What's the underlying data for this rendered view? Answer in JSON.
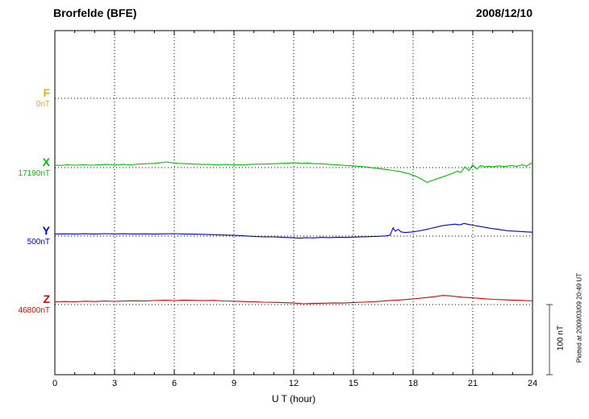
{
  "header": {
    "station": "Brorfelde (BFE)",
    "date": "2008/12/10"
  },
  "axis": {
    "xlabel": "U T (hour)"
  },
  "scale_bar": {
    "label": "100 nT",
    "span_nT": 100
  },
  "footer_note": "Plotted at 2009/03/09 20:49 UT",
  "colors": {
    "grid": "#000000",
    "border": "#000000",
    "scale_bar": "#666666",
    "background": "#ffffff"
  },
  "chart_data": {
    "type": "line",
    "title": "Brorfelde (BFE) magnetogram 2008/12/10",
    "xlabel": "U T (hour)",
    "x_range_hours": [
      0,
      24
    ],
    "x_tick_step_hours": 3,
    "x_tick_labels": [
      "0",
      "3",
      "6",
      "9",
      "12",
      "15",
      "18",
      "21",
      "24"
    ],
    "grid": "dotted vertical lines every 3 h; dotted horizontal line at each component baseline",
    "legend_position": "left margin, one label per trace at its baseline",
    "points_are_offsets_nT_from_baseline": true,
    "scale_reference_nT": 100,
    "series": [
      {
        "id": "F",
        "label": "F",
        "baseline_label": "0nT",
        "baseline_nT": 0,
        "color": "#FFA500",
        "points": []
      },
      {
        "id": "X",
        "label": "X",
        "baseline_label": "17190nT",
        "baseline_nT": 17190,
        "color": "#00C000",
        "points": [
          [
            0,
            3.5
          ],
          [
            0.3,
            3
          ],
          [
            0.6,
            4
          ],
          [
            1,
            3.5
          ],
          [
            1.4,
            4
          ],
          [
            1.8,
            3.5
          ],
          [
            2.2,
            4
          ],
          [
            2.6,
            4.5
          ],
          [
            3,
            4
          ],
          [
            3.4,
            4.5
          ],
          [
            3.8,
            4
          ],
          [
            4.2,
            5
          ],
          [
            4.6,
            5.5
          ],
          [
            5,
            6
          ],
          [
            5.3,
            7
          ],
          [
            5.6,
            8
          ],
          [
            5.9,
            7
          ],
          [
            6.2,
            6
          ],
          [
            6.6,
            5.5
          ],
          [
            7,
            5
          ],
          [
            7.4,
            4.5
          ],
          [
            7.8,
            4.5
          ],
          [
            8.2,
            4
          ],
          [
            8.6,
            4.5
          ],
          [
            9,
            4
          ],
          [
            9.4,
            4
          ],
          [
            9.8,
            4.5
          ],
          [
            10.2,
            5
          ],
          [
            10.6,
            5
          ],
          [
            11,
            5.5
          ],
          [
            11.4,
            6
          ],
          [
            11.8,
            6.5
          ],
          [
            12.1,
            7
          ],
          [
            12.4,
            6
          ],
          [
            12.7,
            6.5
          ],
          [
            13,
            5.5
          ],
          [
            13.4,
            5.5
          ],
          [
            13.8,
            4.5
          ],
          [
            14.2,
            4
          ],
          [
            14.6,
            3
          ],
          [
            15,
            2.5
          ],
          [
            15.4,
            1.5
          ],
          [
            15.8,
            0.5
          ],
          [
            16.2,
            -1
          ],
          [
            16.6,
            -2.5
          ],
          [
            17,
            -4
          ],
          [
            17.4,
            -6
          ],
          [
            17.8,
            -9
          ],
          [
            18.1,
            -12
          ],
          [
            18.4,
            -16
          ],
          [
            18.7,
            -21
          ],
          [
            18.9,
            -19
          ],
          [
            19.1,
            -17
          ],
          [
            19.4,
            -14
          ],
          [
            19.7,
            -11
          ],
          [
            20,
            -8
          ],
          [
            20.2,
            -5
          ],
          [
            20.4,
            -7
          ],
          [
            20.6,
            1
          ],
          [
            20.8,
            -4
          ],
          [
            21,
            4
          ],
          [
            21.2,
            -2
          ],
          [
            21.4,
            3
          ],
          [
            21.6,
            1
          ],
          [
            21.8,
            2
          ],
          [
            22,
            1
          ],
          [
            22.3,
            2.5
          ],
          [
            22.6,
            1.5
          ],
          [
            22.9,
            3
          ],
          [
            23.2,
            2
          ],
          [
            23.5,
            4
          ],
          [
            23.7,
            2
          ],
          [
            23.9,
            6
          ],
          [
            24,
            5
          ]
        ]
      },
      {
        "id": "Y",
        "label": "Y",
        "baseline_label": "500nT",
        "baseline_nT": 500,
        "color": "#0000CC",
        "points": [
          [
            0,
            3
          ],
          [
            0.5,
            3.2
          ],
          [
            1,
            3
          ],
          [
            1.5,
            3.3
          ],
          [
            2,
            3
          ],
          [
            2.5,
            3.4
          ],
          [
            3,
            3.1
          ],
          [
            3.5,
            3.3
          ],
          [
            4,
            3
          ],
          [
            4.5,
            3.2
          ],
          [
            5,
            3
          ],
          [
            5.5,
            3.2
          ],
          [
            6,
            3.4
          ],
          [
            6.5,
            3
          ],
          [
            7,
            2.8
          ],
          [
            7.5,
            2.4
          ],
          [
            8,
            2
          ],
          [
            8.5,
            1.5
          ],
          [
            9,
            1
          ],
          [
            9.5,
            0.3
          ],
          [
            10,
            -0.5
          ],
          [
            10.5,
            -1.2
          ],
          [
            11,
            -1
          ],
          [
            11.5,
            -1.8
          ],
          [
            12,
            -2.4
          ],
          [
            12.3,
            -3
          ],
          [
            12.6,
            -2.2
          ],
          [
            13,
            -2.6
          ],
          [
            13.4,
            -1.8
          ],
          [
            13.8,
            -2.2
          ],
          [
            14.2,
            -1.6
          ],
          [
            14.6,
            -1.9
          ],
          [
            15,
            -1.4
          ],
          [
            15.4,
            -1
          ],
          [
            15.8,
            -0.8
          ],
          [
            16.2,
            -0.4
          ],
          [
            16.6,
            0.2
          ],
          [
            16.85,
            1.5
          ],
          [
            17,
            12
          ],
          [
            17.1,
            7
          ],
          [
            17.25,
            9.5
          ],
          [
            17.4,
            6
          ],
          [
            17.6,
            5
          ],
          [
            17.8,
            5.5
          ],
          [
            18,
            6
          ],
          [
            18.3,
            7.5
          ],
          [
            18.6,
            9
          ],
          [
            18.9,
            11
          ],
          [
            19.2,
            13
          ],
          [
            19.5,
            15
          ],
          [
            19.8,
            16
          ],
          [
            20.1,
            17
          ],
          [
            20.35,
            16
          ],
          [
            20.55,
            18
          ],
          [
            20.8,
            16.5
          ],
          [
            21,
            15.5
          ],
          [
            21.3,
            14
          ],
          [
            21.6,
            12.5
          ],
          [
            21.9,
            11
          ],
          [
            22.2,
            10
          ],
          [
            22.5,
            8.5
          ],
          [
            22.8,
            7.5
          ],
          [
            23.1,
            7
          ],
          [
            23.4,
            6.5
          ],
          [
            23.7,
            6
          ],
          [
            24,
            5.5
          ]
        ]
      },
      {
        "id": "Z",
        "label": "Z",
        "baseline_label": "46800nT",
        "baseline_nT": 46800,
        "color": "#DD0000",
        "points": [
          [
            0,
            4
          ],
          [
            0.5,
            4.4
          ],
          [
            1,
            4
          ],
          [
            1.5,
            4.8
          ],
          [
            2,
            4.4
          ],
          [
            2.5,
            5
          ],
          [
            3,
            4.6
          ],
          [
            3.5,
            5
          ],
          [
            4,
            5.4
          ],
          [
            4.5,
            5
          ],
          [
            5,
            5.8
          ],
          [
            5.5,
            6.2
          ],
          [
            6,
            5.8
          ],
          [
            6.5,
            6.4
          ],
          [
            7,
            6
          ],
          [
            7.5,
            5.6
          ],
          [
            8,
            6
          ],
          [
            8.5,
            5.2
          ],
          [
            9,
            4.8
          ],
          [
            9.5,
            4.4
          ],
          [
            10,
            4
          ],
          [
            10.5,
            3.4
          ],
          [
            11,
            3.2
          ],
          [
            11.5,
            2.8
          ],
          [
            12,
            2.2
          ],
          [
            12.5,
            1.2
          ],
          [
            13,
            1.6
          ],
          [
            13.5,
            2
          ],
          [
            14,
            2.4
          ],
          [
            14.5,
            2.2
          ],
          [
            15,
            3
          ],
          [
            15.5,
            3.4
          ],
          [
            16,
            4
          ],
          [
            16.5,
            5
          ],
          [
            17,
            6
          ],
          [
            17.5,
            7
          ],
          [
            18,
            8
          ],
          [
            18.5,
            9.5
          ],
          [
            19,
            11
          ],
          [
            19.5,
            13
          ],
          [
            19.8,
            12.5
          ],
          [
            20,
            12
          ],
          [
            20.5,
            10.5
          ],
          [
            21,
            9.5
          ],
          [
            21.5,
            8.5
          ],
          [
            22,
            7.5
          ],
          [
            22.5,
            7
          ],
          [
            23,
            6.4
          ],
          [
            23.5,
            6
          ],
          [
            24,
            5.2
          ]
        ]
      }
    ]
  }
}
